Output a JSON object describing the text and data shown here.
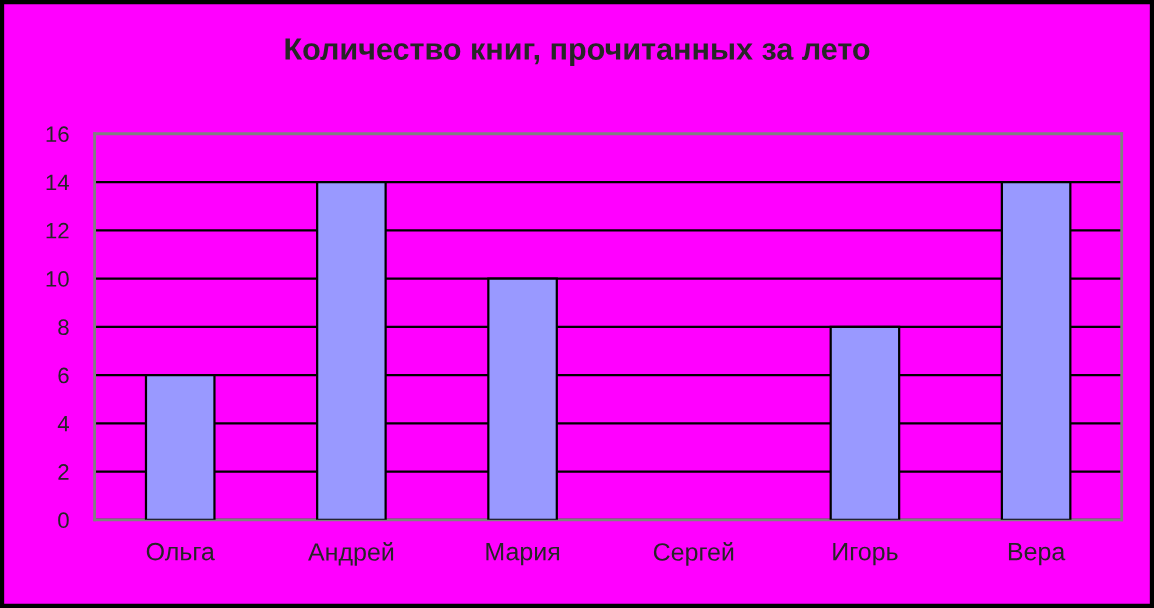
{
  "chart_data": {
    "type": "bar",
    "title": "Количество книг, прочитанных за лето",
    "categories": [
      "Ольга",
      "Андрей",
      "Мария",
      "Сергей",
      "Игорь",
      "Вера"
    ],
    "values": [
      6,
      14,
      10,
      0,
      8,
      14
    ],
    "color": "#9999ff",
    "ylim": [
      0,
      16
    ],
    "yticks": [
      0,
      2,
      4,
      6,
      8,
      10,
      12,
      14,
      16
    ],
    "grid": "y",
    "legend": false
  }
}
